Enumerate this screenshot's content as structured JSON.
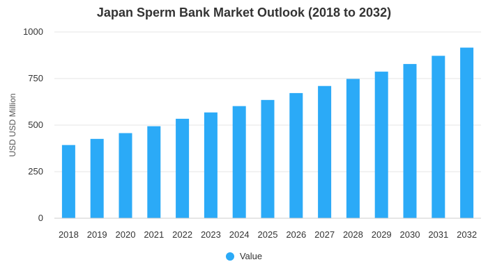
{
  "chart_data": {
    "type": "bar",
    "title": "Japan Sperm Bank Market Outlook (2018 to 2032)",
    "xlabel": "",
    "ylabel": "USD USD Million",
    "categories": [
      "2018",
      "2019",
      "2020",
      "2021",
      "2022",
      "2023",
      "2024",
      "2025",
      "2026",
      "2027",
      "2028",
      "2029",
      "2030",
      "2031",
      "2032"
    ],
    "series": [
      {
        "name": "Value",
        "values": [
          393,
          426,
          457,
          494,
          534,
          568,
          602,
          635,
          672,
          710,
          748,
          787,
          828,
          872,
          916
        ]
      }
    ],
    "ylim": [
      0,
      1000
    ],
    "yticks": [
      "0",
      "250",
      "500",
      "750",
      "1000"
    ],
    "grid": true,
    "legend_position": "bottom",
    "colors": {
      "bar": "#2BAAF7",
      "grid": "#E6E6E6",
      "text": "#333333"
    }
  }
}
